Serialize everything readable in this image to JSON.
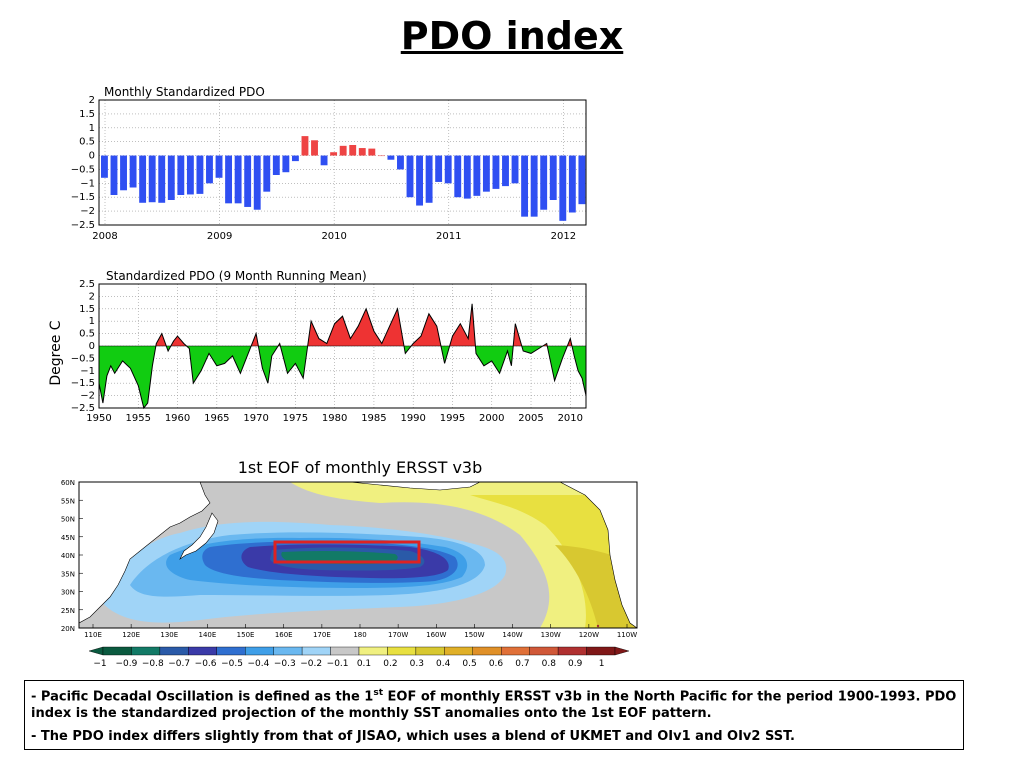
{
  "title": "PDO index",
  "chart_data": [
    {
      "type": "bar",
      "title": "Monthly Standardized PDO",
      "ylim": [
        -2.5,
        2
      ],
      "yticks": [
        2,
        1.5,
        1,
        0.5,
        0,
        -0.5,
        -1,
        -1.5,
        -2,
        -2.5
      ],
      "ytick_labels": [
        "2",
        "1.5",
        "1",
        "0.5",
        "0",
        "−0.5",
        "−1",
        "−1.5",
        "−2",
        "−2.5"
      ],
      "xticks": [
        "2008",
        "2009",
        "2010",
        "2011",
        "2012"
      ],
      "colors": {
        "positive": "#ee4444",
        "negative": "#2f4ff2"
      },
      "values": [
        -0.8,
        -1.42,
        -1.25,
        -1.15,
        -1.7,
        -1.68,
        -1.7,
        -1.6,
        -1.42,
        -1.4,
        -1.38,
        -1.0,
        -0.8,
        -1.72,
        -1.72,
        -1.85,
        -1.95,
        -1.3,
        -0.7,
        -0.6,
        -0.2,
        0.7,
        0.55,
        -0.35,
        0.12,
        0.35,
        0.38,
        0.27,
        0.25,
        0.0,
        -0.15,
        -0.5,
        -1.5,
        -1.8,
        -1.7,
        -0.95,
        -1.0,
        -1.5,
        -1.55,
        -1.45,
        -1.3,
        -1.2,
        -1.1,
        -1.0,
        -2.2,
        -2.2,
        -1.95,
        -1.6,
        -2.35,
        -2.05,
        -1.75
      ]
    },
    {
      "type": "area",
      "title": "Standardized PDO (9 Month Running Mean)",
      "ylabel": "Degree C",
      "ylim": [
        -2.5,
        2.5
      ],
      "yticks": [
        2.5,
        2,
        1.5,
        1,
        0.5,
        0,
        -0.5,
        -1,
        -1.5,
        -2,
        -2.5
      ],
      "ytick_labels": [
        "2.5",
        "2",
        "1.5",
        "1",
        "0.5",
        "0",
        "−0.5",
        "−1",
        "−1.5",
        "−2",
        "−2.5"
      ],
      "xlim": [
        1950,
        2012
      ],
      "xticks": [
        1950,
        1955,
        1960,
        1965,
        1970,
        1975,
        1980,
        1985,
        1990,
        1995,
        2000,
        2005,
        2010
      ],
      "colors": {
        "positive": "#ee3333",
        "negative": "#11cc11"
      },
      "x": [
        1950,
        1950.5,
        1951,
        1951.5,
        1952,
        1953,
        1954,
        1955,
        1955.7,
        1956.2,
        1956.8,
        1957.3,
        1958,
        1958.8,
        1959.5,
        1960,
        1960.8,
        1961.5,
        1962,
        1963,
        1964,
        1965,
        1966,
        1967,
        1968,
        1969,
        1970,
        1970.8,
        1971.5,
        1972,
        1973,
        1974,
        1975,
        1976,
        1977,
        1978,
        1979,
        1980,
        1981,
        1982,
        1983,
        1984,
        1985,
        1986,
        1987,
        1988,
        1989,
        1990,
        1991,
        1992,
        1993,
        1994,
        1995,
        1996,
        1997,
        1997.5,
        1998,
        1999,
        2000,
        2001,
        2002,
        2002.5,
        2003,
        2004,
        2005,
        2006,
        2007,
        2008,
        2009,
        2010,
        2010.5,
        2011,
        2011.5,
        2012
      ],
      "values": [
        -1.5,
        -2.3,
        -1.2,
        -0.8,
        -1.1,
        -0.6,
        -0.9,
        -1.6,
        -2.5,
        -2.3,
        -0.8,
        0.1,
        0.5,
        -0.2,
        0.2,
        0.4,
        0.1,
        -0.1,
        -1.5,
        -1.0,
        -0.3,
        -0.8,
        -0.7,
        -0.4,
        -1.1,
        -0.3,
        0.5,
        -0.9,
        -1.5,
        -0.4,
        0.1,
        -1.1,
        -0.7,
        -1.3,
        1.0,
        0.3,
        0.1,
        0.9,
        1.2,
        0.3,
        0.8,
        1.5,
        0.6,
        0.1,
        0.8,
        1.5,
        -0.3,
        0.1,
        0.4,
        1.3,
        0.8,
        -0.7,
        0.4,
        0.9,
        0.3,
        1.7,
        -0.3,
        -0.8,
        -0.6,
        -1.1,
        -0.2,
        -0.8,
        0.9,
        -0.2,
        -0.3,
        -0.1,
        0.1,
        -1.4,
        -0.5,
        0.3,
        -0.4,
        -1.0,
        -1.3,
        -2.0
      ]
    },
    {
      "type": "heatmap",
      "title": "1st EOF of monthly ERSST v3b",
      "y_tick_labels": [
        "60N",
        "55N",
        "50N",
        "45N",
        "40N",
        "35N",
        "30N",
        "25N",
        "20N"
      ],
      "x_tick_labels": [
        "110E",
        "120E",
        "130E",
        "140E",
        "150E",
        "160E",
        "170E",
        "180",
        "170W",
        "160W",
        "150W",
        "140W",
        "130W",
        "120W",
        "110W"
      ],
      "colorbar_labels": [
        "−1",
        "−0.9",
        "−0.8",
        "−0.7",
        "−0.6",
        "−0.5",
        "−0.4",
        "−0.3",
        "−0.2",
        "−0.1",
        "0.1",
        "0.2",
        "0.3",
        "0.4",
        "0.5",
        "0.6",
        "0.7",
        "0.8",
        "0.9",
        "1"
      ],
      "colorbar_colors": [
        "#0a5a3f",
        "#127a66",
        "#2a5aa8",
        "#3a3aa8",
        "#2f6fd0",
        "#3f9fe8",
        "#6ab8f0",
        "#a0d4f7",
        "#c8c8c8",
        "#f0f080",
        "#e8e040",
        "#d8c830",
        "#e0b028",
        "#e09028",
        "#e07038",
        "#d05838",
        "#b03030",
        "#801818"
      ],
      "land_color": "#ffffff",
      "box_color": "#dd2222"
    }
  ],
  "description": {
    "line1_prefix": "- Pacific Decadal Oscillation is defined as the 1",
    "line1_sup": "st",
    "line1_suffix": " EOF of monthly ERSST v3b in the North Pacific for the period 1900-1993. PDO index is the standardized projection of the monthly SST anomalies onto  the 1st EOF pattern.",
    "line2": "- The PDO index differs slightly from that of JISAO, which uses a blend of UKMET and OIv1 and OIv2 SST."
  }
}
